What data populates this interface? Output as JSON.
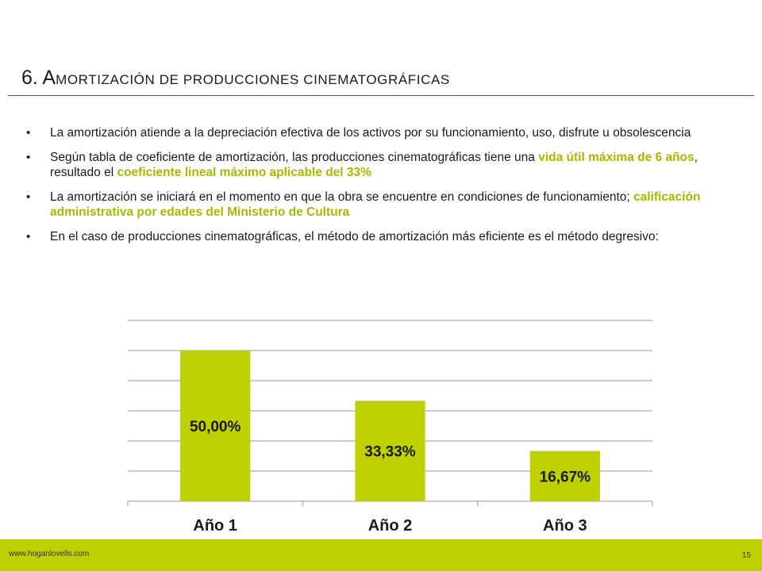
{
  "slide": {
    "title_number": "6. A",
    "title_rest": "MORTIZACIÓN DE PRODUCCIONES  CINEMATOGRÁFICAS",
    "bullets": [
      {
        "parts": [
          {
            "text": "La amortización atiende a la depreciación efectiva de los activos por su funcionamiento, uso, disfrute u obsolescencia",
            "highlight": false
          }
        ]
      },
      {
        "parts": [
          {
            "text": "Según tabla de coeficiente de amortización, las producciones cinematográficas tiene una ",
            "highlight": false
          },
          {
            "text": "vida útil máxima de 6 años",
            "highlight": true
          },
          {
            "text": ", resultado el ",
            "highlight": false
          },
          {
            "text": "coeficiente lineal máximo aplicable del 33%",
            "highlight": true
          }
        ]
      },
      {
        "parts": [
          {
            "text": "La amortización se iniciará en el momento en que la obra se encuentre en condiciones de funcionamiento; ",
            "highlight": false
          },
          {
            "text": "calificación administrativa por edades del Ministerio de Cultura",
            "highlight": true
          }
        ]
      },
      {
        "parts": [
          {
            "text": "En el caso de producciones cinematográficas, el método de amortización más eficiente es el método degresivo:",
            "highlight": false
          }
        ]
      }
    ],
    "bullet_glyph": "•"
  },
  "chart_data": {
    "type": "bar",
    "categories": [
      "Año 1",
      "Año 2",
      "Año 3"
    ],
    "values": [
      50.0,
      33.33,
      16.67
    ],
    "data_labels": [
      "50,00%",
      "33,33%",
      "16,67%"
    ],
    "ylim": [
      0,
      60
    ],
    "grid": true,
    "bar_color": "#bfd000",
    "grid_color": "#9a9a9a"
  },
  "footer": {
    "url": "www.hoganlovells.com",
    "page": "15",
    "bar_color": "#bfd000"
  }
}
